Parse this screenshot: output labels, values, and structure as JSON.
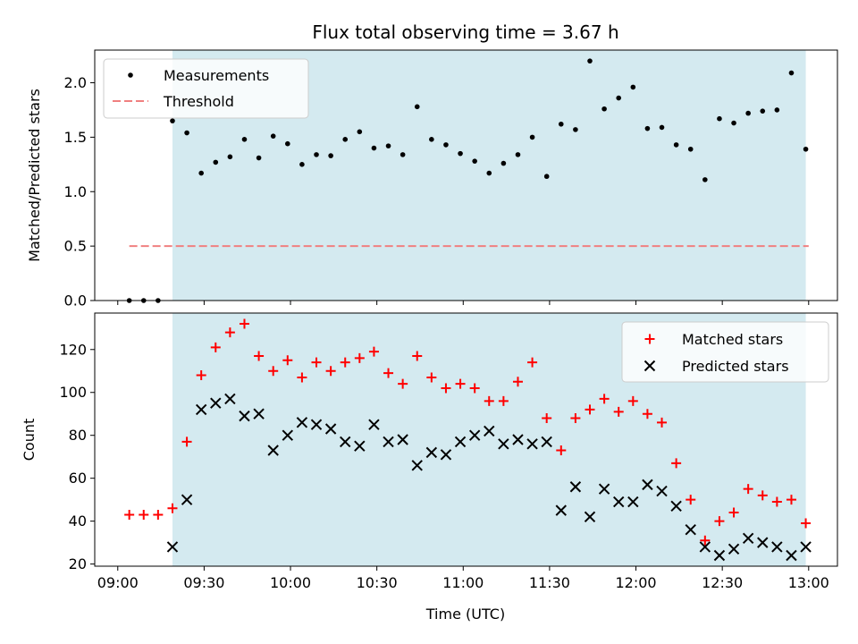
{
  "chart_data": {
    "type": "scatter",
    "title": "Flux total observing time = 3.67 h",
    "xlabel": "Time (UTC)",
    "x_ticks": [
      "09:00",
      "09:30",
      "10:00",
      "10:30",
      "11:00",
      "11:30",
      "12:00",
      "12:30",
      "13:00"
    ],
    "x_tick_minutes": [
      0,
      30,
      60,
      90,
      120,
      150,
      180,
      210,
      240
    ],
    "xlim_minutes": [
      -8,
      250
    ],
    "observing_window_minutes": [
      19,
      239
    ],
    "colors": {
      "shade": "#d4eaf0",
      "threshold": "#f08080",
      "matched": "#ff0000",
      "predicted": "#000000",
      "measure": "#000000"
    },
    "top": {
      "ylabel": "Matched/Predicted stars",
      "ylim": [
        0,
        2.3
      ],
      "y_ticks": [
        0.0,
        0.5,
        1.0,
        1.5,
        2.0
      ],
      "y_tick_labels": [
        "0.0",
        "0.5",
        "1.0",
        "1.5",
        "2.0"
      ],
      "legend": {
        "position": "top-left",
        "measurements": "Measurements",
        "threshold": "Threshold"
      },
      "threshold": {
        "value": 0.5,
        "x_range": [
          4,
          240
        ]
      },
      "measurements": [
        [
          4,
          0.0
        ],
        [
          9,
          0.0
        ],
        [
          14,
          0.0
        ],
        [
          19,
          1.65
        ],
        [
          24,
          1.54
        ],
        [
          29,
          1.17
        ],
        [
          34,
          1.27
        ],
        [
          39,
          1.32
        ],
        [
          44,
          1.48
        ],
        [
          49,
          1.31
        ],
        [
          54,
          1.51
        ],
        [
          59,
          1.44
        ],
        [
          64,
          1.25
        ],
        [
          69,
          1.34
        ],
        [
          74,
          1.33
        ],
        [
          79,
          1.48
        ],
        [
          84,
          1.55
        ],
        [
          89,
          1.4
        ],
        [
          94,
          1.42
        ],
        [
          99,
          1.34
        ],
        [
          104,
          1.78
        ],
        [
          109,
          1.48
        ],
        [
          114,
          1.43
        ],
        [
          119,
          1.35
        ],
        [
          124,
          1.28
        ],
        [
          129,
          1.17
        ],
        [
          134,
          1.26
        ],
        [
          139,
          1.34
        ],
        [
          144,
          1.5
        ],
        [
          149,
          1.14
        ],
        [
          154,
          1.62
        ],
        [
          159,
          1.57
        ],
        [
          164,
          2.2
        ],
        [
          169,
          1.76
        ],
        [
          174,
          1.86
        ],
        [
          179,
          1.96
        ],
        [
          184,
          1.58
        ],
        [
          189,
          1.59
        ],
        [
          194,
          1.43
        ],
        [
          199,
          1.39
        ],
        [
          204,
          1.11
        ],
        [
          209,
          1.67
        ],
        [
          214,
          1.63
        ],
        [
          219,
          1.72
        ],
        [
          224,
          1.74
        ],
        [
          229,
          1.75
        ],
        [
          234,
          2.09
        ],
        [
          239,
          1.39
        ]
      ]
    },
    "bottom": {
      "ylabel": "Count",
      "ylim": [
        19,
        137
      ],
      "y_ticks": [
        20,
        40,
        60,
        80,
        100,
        120
      ],
      "y_tick_labels": [
        "20",
        "40",
        "60",
        "80",
        "100",
        "120"
      ],
      "legend": {
        "position": "top-right",
        "matched": "Matched stars",
        "predicted": "Predicted stars"
      },
      "matched": [
        [
          4,
          43
        ],
        [
          9,
          43
        ],
        [
          14,
          43
        ],
        [
          19,
          46
        ],
        [
          24,
          77
        ],
        [
          29,
          108
        ],
        [
          34,
          121
        ],
        [
          39,
          128
        ],
        [
          44,
          132
        ],
        [
          49,
          117
        ],
        [
          54,
          110
        ],
        [
          59,
          115
        ],
        [
          64,
          107
        ],
        [
          69,
          114
        ],
        [
          74,
          110
        ],
        [
          79,
          114
        ],
        [
          84,
          116
        ],
        [
          89,
          119
        ],
        [
          94,
          109
        ],
        [
          99,
          104
        ],
        [
          104,
          117
        ],
        [
          109,
          107
        ],
        [
          114,
          102
        ],
        [
          119,
          104
        ],
        [
          124,
          102
        ],
        [
          129,
          96
        ],
        [
          134,
          96
        ],
        [
          139,
          105
        ],
        [
          144,
          114
        ],
        [
          149,
          88
        ],
        [
          154,
          73
        ],
        [
          159,
          88
        ],
        [
          164,
          92
        ],
        [
          169,
          97
        ],
        [
          174,
          91
        ],
        [
          179,
          96
        ],
        [
          184,
          90
        ],
        [
          189,
          86
        ],
        [
          194,
          67
        ],
        [
          199,
          50
        ],
        [
          204,
          31
        ],
        [
          209,
          40
        ],
        [
          214,
          44
        ],
        [
          219,
          55
        ],
        [
          224,
          52
        ],
        [
          229,
          49
        ],
        [
          234,
          50
        ],
        [
          239,
          39
        ]
      ],
      "predicted": [
        [
          19,
          28
        ],
        [
          24,
          50
        ],
        [
          29,
          92
        ],
        [
          34,
          95
        ],
        [
          39,
          97
        ],
        [
          44,
          89
        ],
        [
          49,
          90
        ],
        [
          54,
          73
        ],
        [
          59,
          80
        ],
        [
          64,
          86
        ],
        [
          69,
          85
        ],
        [
          74,
          83
        ],
        [
          79,
          77
        ],
        [
          84,
          75
        ],
        [
          89,
          85
        ],
        [
          94,
          77
        ],
        [
          99,
          78
        ],
        [
          104,
          66
        ],
        [
          109,
          72
        ],
        [
          114,
          71
        ],
        [
          119,
          77
        ],
        [
          124,
          80
        ],
        [
          129,
          82
        ],
        [
          134,
          76
        ],
        [
          139,
          78
        ],
        [
          144,
          76
        ],
        [
          149,
          77
        ],
        [
          154,
          45
        ],
        [
          159,
          56
        ],
        [
          164,
          42
        ],
        [
          169,
          55
        ],
        [
          174,
          49
        ],
        [
          179,
          49
        ],
        [
          184,
          57
        ],
        [
          189,
          54
        ],
        [
          194,
          47
        ],
        [
          199,
          36
        ],
        [
          204,
          28
        ],
        [
          209,
          24
        ],
        [
          214,
          27
        ],
        [
          219,
          32
        ],
        [
          224,
          30
        ],
        [
          229,
          28
        ],
        [
          234,
          24
        ],
        [
          239,
          28
        ]
      ]
    }
  }
}
